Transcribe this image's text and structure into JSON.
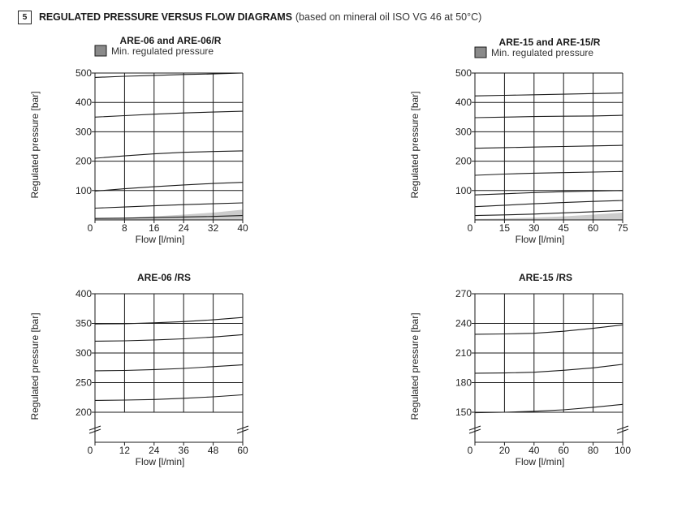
{
  "header": {
    "section_number": "5",
    "title": "REGULATED PRESSURE VERSUS FLOW DIAGRAMS",
    "subtitle": "(based on mineral oil ISO VG 46 at 50°C)"
  },
  "colors": {
    "line": "#1a1a1a",
    "grid": "#1a1a1a",
    "min_fill": "#cccccc",
    "legend_fill": "#8a8a8a"
  },
  "chart_data": [
    {
      "id": "are06",
      "type": "line",
      "title": "ARE-06 and ARE-06/R",
      "legend": "Min. regulated pressure",
      "xlabel": "Flow [l/min]",
      "ylabel": "Regulated pressure [bar]",
      "xlim": [
        0,
        40
      ],
      "ylim": [
        0,
        500
      ],
      "xticks": [
        0,
        8,
        16,
        24,
        32,
        40
      ],
      "yticks": [
        100,
        200,
        300,
        400,
        500
      ],
      "grid": true,
      "axis_break": false,
      "min_band": {
        "x": [
          0,
          8,
          16,
          24,
          32,
          40
        ],
        "y": [
          4,
          7,
          12,
          18,
          25,
          35
        ]
      },
      "series": [
        {
          "name": "curve-1",
          "x": [
            0,
            8,
            16,
            24,
            32,
            40
          ],
          "y": [
            5,
            6,
            8,
            10,
            12,
            15
          ]
        },
        {
          "name": "curve-2",
          "x": [
            0,
            8,
            16,
            24,
            32,
            40
          ],
          "y": [
            40,
            44,
            48,
            52,
            55,
            58
          ]
        },
        {
          "name": "curve-3",
          "x": [
            0,
            8,
            16,
            24,
            32,
            40
          ],
          "y": [
            98,
            106,
            113,
            119,
            124,
            128
          ]
        },
        {
          "name": "curve-4",
          "x": [
            0,
            8,
            16,
            24,
            32,
            40
          ],
          "y": [
            210,
            218,
            225,
            230,
            233,
            235
          ]
        },
        {
          "name": "curve-5",
          "x": [
            0,
            8,
            16,
            24,
            32,
            40
          ],
          "y": [
            350,
            355,
            360,
            364,
            367,
            370
          ]
        },
        {
          "name": "curve-6",
          "x": [
            0,
            8,
            16,
            24,
            32,
            40
          ],
          "y": [
            485,
            489,
            492,
            495,
            497,
            500
          ]
        }
      ]
    },
    {
      "id": "are15",
      "type": "line",
      "title": "ARE-15 and ARE-15/R",
      "legend": "Min. regulated pressure",
      "xlabel": "Flow [l/min]",
      "ylabel": "Regulated pressure [bar]",
      "xlim": [
        0,
        75
      ],
      "ylim": [
        0,
        500
      ],
      "xticks": [
        0,
        15,
        30,
        45,
        60,
        75
      ],
      "yticks": [
        100,
        200,
        300,
        400,
        500
      ],
      "grid": true,
      "axis_break": false,
      "min_band": {
        "x": [
          0,
          15,
          30,
          45,
          60,
          75
        ],
        "y": [
          3,
          5,
          8,
          12,
          18,
          25
        ]
      },
      "series": [
        {
          "name": "curve-1",
          "x": [
            0,
            15,
            30,
            45,
            60,
            75
          ],
          "y": [
            15,
            17,
            20,
            24,
            28,
            32
          ]
        },
        {
          "name": "curve-2",
          "x": [
            0,
            15,
            30,
            45,
            60,
            75
          ],
          "y": [
            45,
            50,
            55,
            59,
            63,
            66
          ]
        },
        {
          "name": "curve-3",
          "x": [
            0,
            15,
            30,
            45,
            60,
            75
          ],
          "y": [
            85,
            89,
            93,
            96,
            98,
            100
          ]
        },
        {
          "name": "curve-4",
          "x": [
            0,
            15,
            30,
            45,
            60,
            75
          ],
          "y": [
            152,
            156,
            159,
            161,
            163,
            165
          ]
        },
        {
          "name": "curve-5",
          "x": [
            0,
            15,
            30,
            45,
            60,
            75
          ],
          "y": [
            244,
            246,
            248,
            250,
            252,
            254
          ]
        },
        {
          "name": "curve-6",
          "x": [
            0,
            15,
            30,
            45,
            60,
            75
          ],
          "y": [
            348,
            350,
            352,
            353,
            354,
            356
          ]
        },
        {
          "name": "curve-7",
          "x": [
            0,
            15,
            30,
            45,
            60,
            75
          ],
          "y": [
            422,
            424,
            426,
            428,
            430,
            432
          ]
        }
      ]
    },
    {
      "id": "are06rs",
      "type": "line",
      "title": "ARE-06 /RS",
      "xlabel": "Flow [l/min]",
      "ylabel": "Regulated pressure [bar]",
      "xlim": [
        0,
        60
      ],
      "ylim": [
        200,
        400
      ],
      "xticks": [
        0,
        12,
        24,
        36,
        48,
        60
      ],
      "yticks": [
        200,
        250,
        300,
        350,
        400
      ],
      "grid": true,
      "axis_break": true,
      "series": [
        {
          "name": "curve-1",
          "x": [
            0,
            12,
            24,
            36,
            48,
            60
          ],
          "y": [
            220,
            220.5,
            221.5,
            223.5,
            226,
            229.5
          ]
        },
        {
          "name": "curve-2",
          "x": [
            0,
            12,
            24,
            36,
            48,
            60
          ],
          "y": [
            270,
            270.5,
            272,
            274,
            277,
            280
          ]
        },
        {
          "name": "curve-3",
          "x": [
            0,
            12,
            24,
            36,
            48,
            60
          ],
          "y": [
            320,
            320.5,
            322,
            324,
            327,
            331
          ]
        },
        {
          "name": "curve-4",
          "x": [
            0,
            12,
            24,
            36,
            48,
            60
          ],
          "y": [
            349,
            349.5,
            351,
            353,
            356,
            360
          ]
        }
      ]
    },
    {
      "id": "are15rs",
      "type": "line",
      "title": "ARE-15 /RS",
      "xlabel": "Flow [l/min]",
      "ylabel": "Regulated pressure [bar]",
      "xlim": [
        0,
        100
      ],
      "ylim": [
        150,
        270
      ],
      "xticks": [
        0,
        20,
        40,
        60,
        80,
        100
      ],
      "yticks": [
        150,
        180,
        210,
        240,
        270
      ],
      "grid": true,
      "axis_break": true,
      "series": [
        {
          "name": "curve-1",
          "x": [
            0,
            20,
            40,
            60,
            80,
            100
          ],
          "y": [
            149.5,
            150,
            151,
            152.5,
            155,
            158
          ]
        },
        {
          "name": "curve-2",
          "x": [
            0,
            20,
            40,
            60,
            80,
            100
          ],
          "y": [
            189.5,
            189.8,
            190.5,
            192.5,
            195,
            198.5
          ]
        },
        {
          "name": "curve-3",
          "x": [
            0,
            20,
            40,
            60,
            80,
            100
          ],
          "y": [
            229,
            229.3,
            230,
            232,
            235,
            238.5
          ]
        }
      ]
    }
  ]
}
